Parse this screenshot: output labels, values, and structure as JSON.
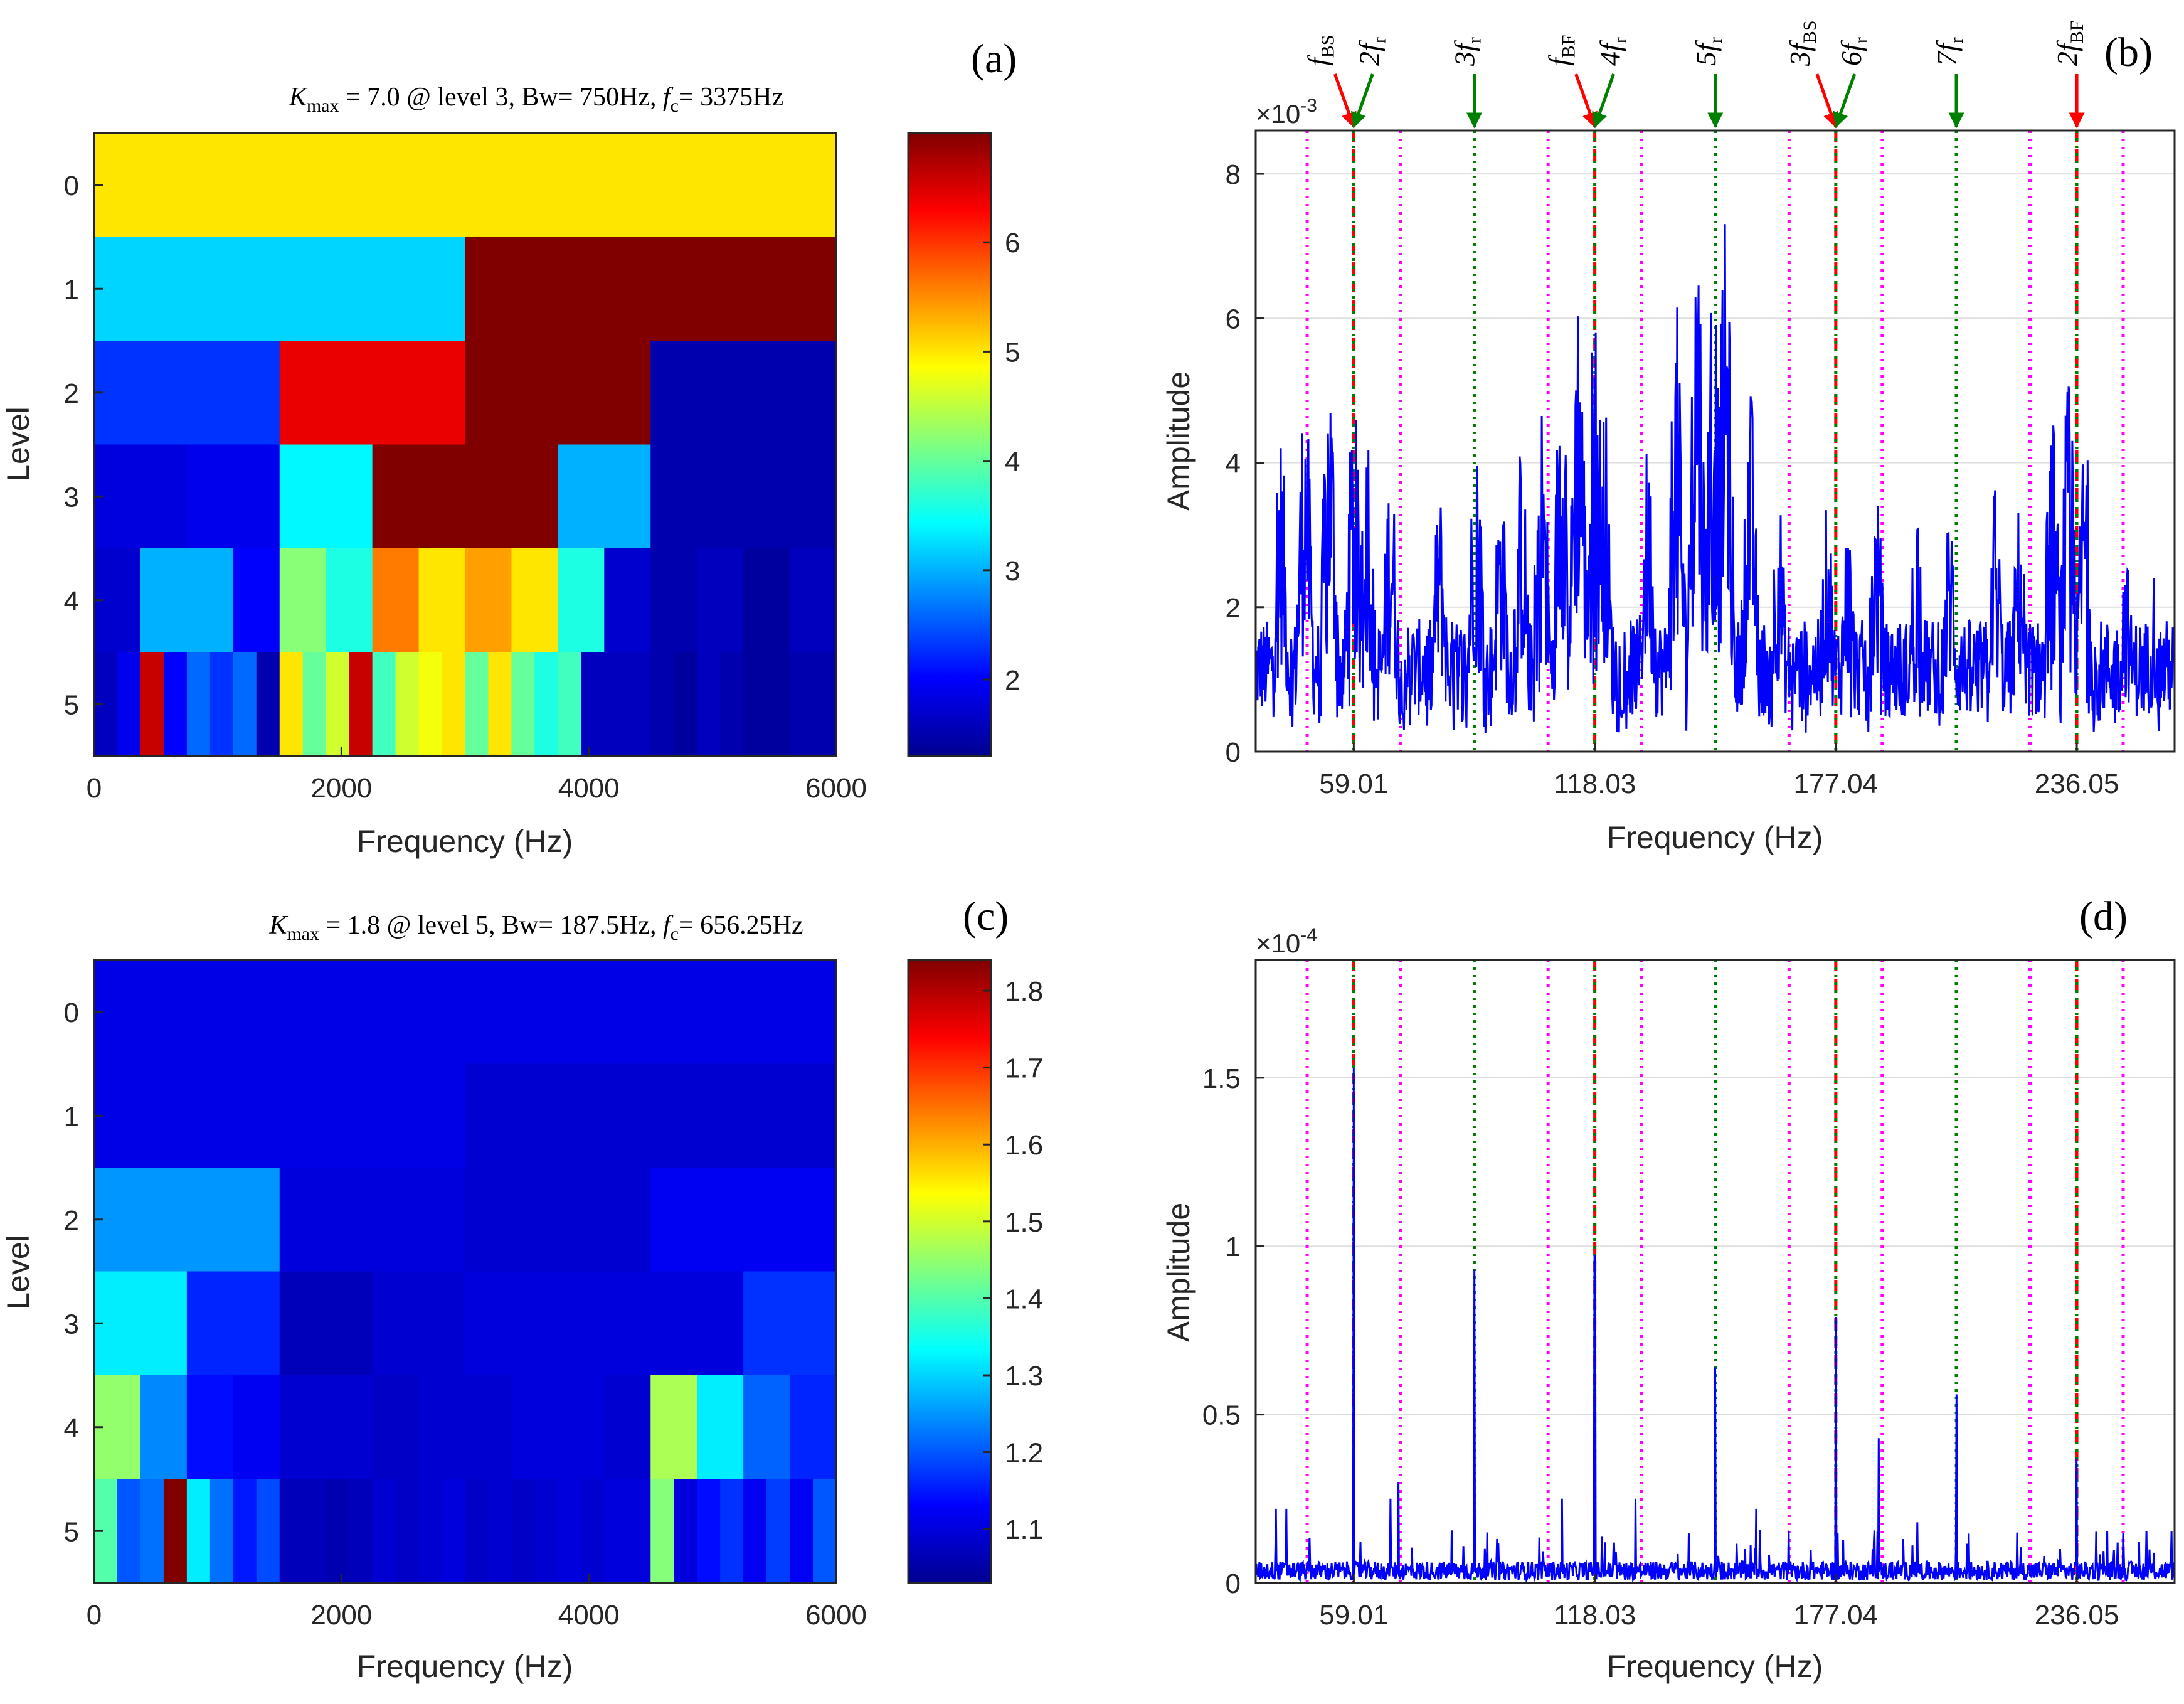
{
  "chart_data": [
    {
      "id": "a",
      "panel_label": "(a)",
      "type": "heatmap",
      "title": {
        "k": "K",
        "max": "max",
        "mid": " = 7.0 @ level 3, Bw= 750Hz, ",
        "f": "f",
        "c": "c",
        "end": "= 3375Hz"
      },
      "xlabel": "Frequency (Hz)",
      "ylabel": "Level",
      "xlim": [
        0,
        6000
      ],
      "xticks": [
        "0",
        "2000",
        "4000",
        "6000"
      ],
      "ylevels": [
        "0",
        "1",
        "2",
        "3",
        "4",
        "5"
      ],
      "clim": [
        1.3,
        7.0
      ],
      "cticks": [
        "2",
        "3",
        "4",
        "5",
        "6"
      ],
      "cells": [
        [
          5.0
        ],
        [
          3.2,
          7.0
        ],
        [
          2.3,
          6.4,
          7.0,
          1.5
        ],
        [
          1.8,
          1.9,
          3.4,
          7.0,
          7.0,
          3.0,
          1.5,
          1.5
        ],
        [
          1.7,
          3.0,
          3.0,
          2.0,
          4.2,
          3.6,
          5.6,
          5.0,
          5.4,
          5.0,
          3.6,
          1.7,
          1.5,
          1.6,
          1.4,
          1.6
        ],
        [
          1.6,
          1.9,
          6.6,
          2.0,
          2.6,
          2.3,
          2.6,
          1.5,
          5.0,
          4.0,
          4.6,
          6.6,
          3.8,
          4.6,
          4.8,
          5.0,
          4.0,
          5.0,
          4.0,
          3.6,
          3.8,
          1.6,
          1.6,
          1.6,
          1.5,
          1.4,
          1.6,
          1.5,
          1.4,
          1.4,
          1.5,
          1.5
        ]
      ]
    },
    {
      "id": "b",
      "panel_label": "(b)",
      "type": "line",
      "xlabel": "Frequency (Hz)",
      "ylabel": "Amplitude",
      "xlim": [
        35,
        260
      ],
      "ylim": [
        0,
        8.6
      ],
      "yticks": [
        0,
        2,
        4,
        6,
        8
      ],
      "xtick_labels": [
        "59.01",
        "118.03",
        "177.04",
        "236.05"
      ],
      "exponent": "-3",
      "series_color": "#0000ff",
      "peaks": [
        [
          41,
          4.2
        ],
        [
          47,
          4.8
        ],
        [
          53,
          5.2
        ],
        [
          59,
          4.6
        ],
        [
          62,
          4.8
        ],
        [
          68,
          3.8
        ],
        [
          80,
          3.4
        ],
        [
          89,
          4.4
        ],
        [
          95,
          3.6
        ],
        [
          100,
          4.0
        ],
        [
          105,
          4.6
        ],
        [
          110,
          5.6
        ],
        [
          114,
          6.2
        ],
        [
          118,
          5.8
        ],
        [
          120,
          5.0
        ],
        [
          131,
          4.0
        ],
        [
          138,
          5.8
        ],
        [
          143,
          7.2
        ],
        [
          147,
          6.6
        ],
        [
          150,
          6.8
        ],
        [
          156,
          4.8
        ],
        [
          163,
          3.4
        ],
        [
          175,
          3.2
        ],
        [
          180,
          3.0
        ],
        [
          187,
          3.4
        ],
        [
          197,
          3.4
        ],
        [
          205,
          3.2
        ],
        [
          216,
          3.6
        ],
        [
          222,
          3.2
        ],
        [
          230,
          4.4
        ],
        [
          234,
          4.8
        ],
        [
          238,
          4.2
        ],
        [
          248,
          2.6
        ],
        [
          255,
          2.4
        ]
      ],
      "baseline": 1.7,
      "vlines": {
        "red_dashed": [
          59.01,
          118.03,
          177.04,
          236.05
        ],
        "green_dotted": [
          59.01,
          88.52,
          118.03,
          147.54,
          177.04,
          206.56,
          236.05
        ],
        "magenta_dotted": [
          47.6,
          70.4,
          106.6,
          129.4,
          165.6,
          188.4,
          224.6,
          247.4
        ]
      },
      "annotations": [
        {
          "b": "f",
          "s": "BS",
          "x": 59.01,
          "color": "red"
        },
        {
          "b": "2f",
          "s": "r",
          "x": 59.01,
          "color": "green"
        },
        {
          "b": "3f",
          "s": "r",
          "x": 88.52,
          "color": "green"
        },
        {
          "b": "f",
          "s": "BF",
          "x": 118.03,
          "color": "red"
        },
        {
          "b": "4f",
          "s": "r",
          "x": 118.03,
          "color": "green"
        },
        {
          "b": "5f",
          "s": "r",
          "x": 147.54,
          "color": "green"
        },
        {
          "b": "3f",
          "s": "BS",
          "x": 177.04,
          "color": "red"
        },
        {
          "b": "6f",
          "s": "r",
          "x": 177.04,
          "color": "green"
        },
        {
          "b": "7f",
          "s": "r",
          "x": 206.56,
          "color": "green"
        },
        {
          "b": "2f",
          "s": "BF",
          "x": 236.05,
          "color": "red"
        }
      ]
    },
    {
      "id": "c",
      "panel_label": "(c)",
      "type": "heatmap",
      "title": {
        "k": "K",
        "max": "max",
        "mid": " = 1.8 @ level 5, Bw= 187.5Hz, ",
        "f": "f",
        "c": "c",
        "end": "= 656.25Hz"
      },
      "xlabel": "Frequency (Hz)",
      "ylabel": "Level",
      "xlim": [
        0,
        6000
      ],
      "xticks": [
        "0",
        "2000",
        "4000",
        "6000"
      ],
      "ylevels": [
        "0",
        "1",
        "2",
        "3",
        "4",
        "5"
      ],
      "clim": [
        1.03,
        1.84
      ],
      "cticks": [
        "1.1",
        "1.2",
        "1.3",
        "1.4",
        "1.5",
        "1.6",
        "1.7",
        "1.8"
      ],
      "cells": [
        [
          1.11
        ],
        [
          1.11,
          1.09
        ],
        [
          1.25,
          1.1,
          1.09,
          1.12
        ],
        [
          1.32,
          1.16,
          1.07,
          1.09,
          1.1,
          1.1,
          1.1,
          1.17
        ],
        [
          1.45,
          1.24,
          1.14,
          1.12,
          1.09,
          1.09,
          1.08,
          1.09,
          1.09,
          1.1,
          1.1,
          1.09,
          1.47,
          1.32,
          1.21,
          1.16
        ],
        [
          1.4,
          1.2,
          1.22,
          1.84,
          1.32,
          1.22,
          1.15,
          1.19,
          1.07,
          1.07,
          1.06,
          1.07,
          1.09,
          1.08,
          1.09,
          1.1,
          1.08,
          1.09,
          1.08,
          1.09,
          1.1,
          1.09,
          1.1,
          1.1,
          1.44,
          1.1,
          1.14,
          1.17,
          1.12,
          1.18,
          1.12,
          1.2
        ]
      ]
    },
    {
      "id": "d",
      "panel_label": "(d)",
      "type": "line",
      "xlabel": "Frequency (Hz)",
      "ylabel": "Amplitude",
      "xlim": [
        35,
        260
      ],
      "ylim": [
        0,
        1.85
      ],
      "yticks": [
        0,
        0.5,
        1,
        1.5
      ],
      "ytick_labels": [
        "0",
        "0.5",
        "1",
        "1.5"
      ],
      "xtick_labels": [
        "59.01",
        "118.03",
        "177.04",
        "236.05"
      ],
      "exponent": "-4",
      "series_color": "#0000ff",
      "peaks": [
        [
          59.01,
          1.53
        ],
        [
          88.52,
          0.93
        ],
        [
          118.03,
          0.97
        ],
        [
          147.54,
          0.64
        ],
        [
          177.04,
          0.79
        ],
        [
          206.56,
          0.56
        ],
        [
          236.05,
          0.37
        ],
        [
          70.0,
          0.3
        ],
        [
          68.0,
          0.25
        ],
        [
          40.0,
          0.22
        ],
        [
          42.5,
          0.22
        ],
        [
          110.0,
          0.25
        ],
        [
          128.0,
          0.25
        ],
        [
          157.5,
          0.22
        ],
        [
          187.5,
          0.43
        ],
        [
          186.0,
          0.1
        ],
        [
          197.0,
          0.18
        ],
        [
          246.0,
          0.12
        ],
        [
          228.0,
          0.08
        ]
      ],
      "baseline": 0.04,
      "vlines": {
        "red_dashed": [
          59.01,
          118.03,
          177.04,
          236.05
        ],
        "green_dotted": [
          59.01,
          88.52,
          118.03,
          147.54,
          177.04,
          206.56,
          236.05
        ],
        "magenta_dotted": [
          47.6,
          70.4,
          106.6,
          129.4,
          165.6,
          188.4,
          224.6,
          247.4
        ]
      }
    }
  ]
}
